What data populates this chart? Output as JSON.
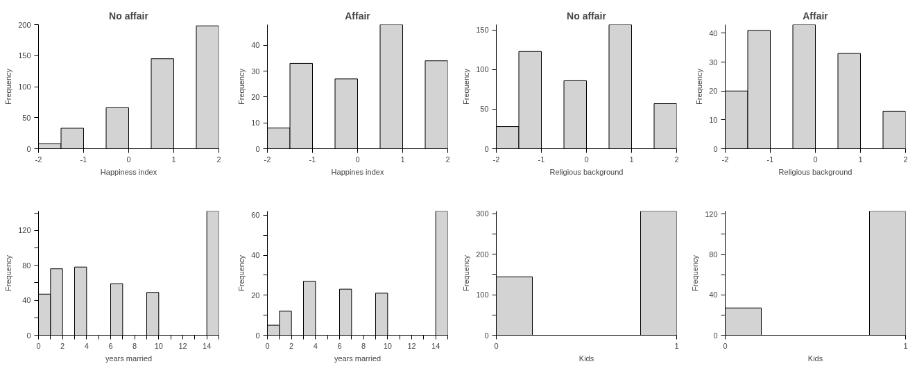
{
  "chart_data": [
    {
      "type": "histogram",
      "title": "No affair",
      "xlabel": "Happiness index",
      "ylabel": "Frequency",
      "color": "#d3d3d3",
      "bins": [
        -2,
        -1.5,
        -1,
        -0.5,
        0,
        0.5,
        1,
        1.5,
        2
      ],
      "values": [
        8,
        33,
        0,
        66,
        0,
        145,
        0,
        198
      ],
      "xlim": [
        -2,
        2
      ],
      "xticks": [
        -2,
        -1,
        0,
        1,
        2
      ],
      "ylim": [
        0,
        200
      ],
      "yticks": [
        0,
        50,
        100,
        150,
        200
      ],
      "grid": false
    },
    {
      "type": "histogram",
      "title": "Affair",
      "xlabel": "Happines index",
      "ylabel": "Frequency",
      "color": "#d3d3d3",
      "bins": [
        -2,
        -1.5,
        -1,
        -0.5,
        0,
        0.5,
        1,
        1.5,
        2
      ],
      "values": [
        8,
        33,
        0,
        27,
        0,
        48,
        0,
        34
      ],
      "xlim": [
        -2,
        2
      ],
      "xticks": [
        -2,
        -1,
        0,
        1,
        2
      ],
      "ylim": [
        0,
        48
      ],
      "yticks": [
        0,
        10,
        20,
        30,
        40
      ],
      "grid": false
    },
    {
      "type": "histogram",
      "title": "No affair",
      "xlabel": "Religious background",
      "ylabel": "Frequency",
      "color": "#d3d3d3",
      "bins": [
        -2,
        -1.5,
        -1,
        -0.5,
        0,
        0.5,
        1,
        1.5,
        2
      ],
      "values": [
        28,
        123,
        0,
        86,
        0,
        157,
        0,
        57
      ],
      "xlim": [
        -2,
        2
      ],
      "xticks": [
        -2,
        -1,
        0,
        1,
        2
      ],
      "ylim": [
        0,
        157
      ],
      "yticks": [
        0,
        50,
        100,
        150
      ],
      "grid": false
    },
    {
      "type": "histogram",
      "title": "Affair",
      "xlabel": "Religious background",
      "ylabel": "Frequency",
      "color": "#d3d3d3",
      "bins": [
        -2,
        -1.5,
        -1,
        -0.5,
        0,
        0.5,
        1,
        1.5,
        2
      ],
      "values": [
        20,
        41,
        0,
        43,
        0,
        33,
        0,
        13
      ],
      "xlim": [
        -2,
        2
      ],
      "xticks": [
        -2,
        -1,
        0,
        1,
        2
      ],
      "ylim": [
        0,
        43
      ],
      "yticks": [
        0,
        10,
        20,
        30,
        40
      ],
      "grid": false
    },
    {
      "type": "histogram",
      "xlabel": "years married",
      "ylabel": "Frequency",
      "color": "#d3d3d3",
      "bins": [
        0,
        1,
        2,
        3,
        4,
        5,
        6,
        7,
        8,
        9,
        10,
        11,
        12,
        13,
        14,
        15
      ],
      "values": [
        47,
        76,
        0,
        78,
        0,
        0,
        59,
        0,
        0,
        49,
        0,
        0,
        0,
        0,
        142
      ],
      "xlim": [
        0,
        15
      ],
      "xticks": [
        0,
        {
          "value": 1,
          "label": null
        },
        2,
        {
          "value": 3,
          "label": null
        },
        4,
        {
          "value": 5,
          "label": null
        },
        6,
        {
          "value": 7,
          "label": null
        },
        8,
        {
          "value": 9,
          "label": null
        },
        10,
        {
          "value": 11,
          "label": null
        },
        12,
        {
          "value": 13,
          "label": null
        },
        14,
        {
          "value": 15,
          "label": null
        }
      ],
      "ylim": [
        0,
        142
      ],
      "yticks": [
        0,
        {
          "value": 20,
          "label": null
        },
        40,
        {
          "value": 60,
          "label": null
        },
        80,
        {
          "value": 100,
          "label": null
        },
        120,
        {
          "value": 140,
          "label": null
        }
      ],
      "grid": false
    },
    {
      "type": "histogram",
      "xlabel": "years married",
      "ylabel": "Frequency",
      "color": "#d3d3d3",
      "bins": [
        0,
        1,
        2,
        3,
        4,
        5,
        6,
        7,
        8,
        9,
        10,
        11,
        12,
        13,
        14,
        15
      ],
      "values": [
        5,
        12,
        0,
        27,
        0,
        0,
        23,
        0,
        0,
        21,
        0,
        0,
        0,
        0,
        62
      ],
      "xlim": [
        0,
        15
      ],
      "xticks": [
        0,
        {
          "value": 1,
          "label": null
        },
        2,
        {
          "value": 3,
          "label": null
        },
        4,
        {
          "value": 5,
          "label": null
        },
        6,
        {
          "value": 7,
          "label": null
        },
        8,
        {
          "value": 9,
          "label": null
        },
        10,
        {
          "value": 11,
          "label": null
        },
        12,
        {
          "value": 13,
          "label": null
        },
        14,
        {
          "value": 15,
          "label": null
        }
      ],
      "ylim": [
        0,
        62
      ],
      "yticks": [
        0,
        {
          "value": 10,
          "label": null
        },
        20,
        {
          "value": 30,
          "label": null
        },
        40,
        {
          "value": 50,
          "label": null
        },
        60
      ],
      "grid": false
    },
    {
      "type": "histogram",
      "xlabel": "Kids",
      "ylabel": "Frequency",
      "color": "#d3d3d3",
      "bins": [
        0,
        0.2,
        0.4,
        0.6,
        0.8,
        1
      ],
      "values": [
        144,
        0,
        0,
        0,
        306
      ],
      "xlim": [
        0,
        1
      ],
      "xticks": [
        0,
        1
      ],
      "ylim": [
        0,
        306
      ],
      "yticks": [
        0,
        {
          "value": 50,
          "label": null
        },
        100,
        {
          "value": 150,
          "label": null
        },
        200,
        {
          "value": 250,
          "label": null
        },
        300
      ],
      "grid": false
    },
    {
      "type": "histogram",
      "xlabel": "Kids",
      "ylabel": "Frequency",
      "color": "#d3d3d3",
      "bins": [
        0,
        0.2,
        0.4,
        0.6,
        0.8,
        1
      ],
      "values": [
        27,
        0,
        0,
        0,
        123
      ],
      "xlim": [
        0,
        1
      ],
      "xticks": [
        0,
        1
      ],
      "ylim": [
        0,
        123
      ],
      "yticks": [
        0,
        {
          "value": 20,
          "label": null
        },
        40,
        {
          "value": 60,
          "label": null
        },
        80,
        {
          "value": 100,
          "label": null
        },
        120
      ],
      "grid": false
    }
  ]
}
